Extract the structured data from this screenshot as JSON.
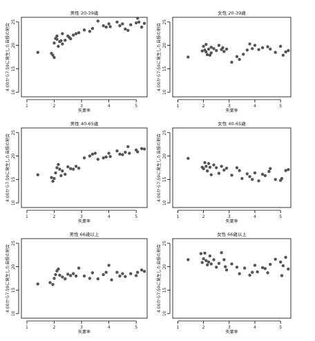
{
  "chart_data": [
    {
      "type": "scatter",
      "title": "男性 20-39歳",
      "xlabel": "失業率",
      "ylabel": "4:00から7:59に発生した自殺の割合",
      "xlim": [
        0.8,
        5.4
      ],
      "ylim": [
        9,
        26
      ],
      "xticks": [
        1,
        2,
        3,
        4,
        5
      ],
      "yticks": [
        10,
        15,
        20,
        25
      ],
      "grid": false,
      "points": [
        [
          1.4,
          18.5
        ],
        [
          1.9,
          18.3
        ],
        [
          1.95,
          17.9
        ],
        [
          2.0,
          17.4
        ],
        [
          2.0,
          20.5
        ],
        [
          2.05,
          21.5
        ],
        [
          2.1,
          21.3
        ],
        [
          2.1,
          22.0
        ],
        [
          2.15,
          19.8
        ],
        [
          2.2,
          20.8
        ],
        [
          2.25,
          21.0
        ],
        [
          2.3,
          20.3
        ],
        [
          2.3,
          22.5
        ],
        [
          2.4,
          21.1
        ],
        [
          2.5,
          22.0
        ],
        [
          2.55,
          21.7
        ],
        [
          2.6,
          21.4
        ],
        [
          2.7,
          22.2
        ],
        [
          2.8,
          22.5
        ],
        [
          2.9,
          22.7
        ],
        [
          3.1,
          23.3
        ],
        [
          3.3,
          23.0
        ],
        [
          3.4,
          23.6
        ],
        [
          3.6,
          25.2
        ],
        [
          3.8,
          24.2
        ],
        [
          3.9,
          23.9
        ],
        [
          4.0,
          24.6
        ],
        [
          4.05,
          24.0
        ],
        [
          4.3,
          25.0
        ],
        [
          4.4,
          24.2
        ],
        [
          4.5,
          24.6
        ],
        [
          4.6,
          23.5
        ],
        [
          4.7,
          23.2
        ],
        [
          4.8,
          24.4
        ],
        [
          5.0,
          24.8
        ],
        [
          5.05,
          25.8
        ],
        [
          5.1,
          25.0
        ],
        [
          5.2,
          23.9
        ],
        [
          5.3,
          24.7
        ]
      ]
    },
    {
      "type": "scatter",
      "title": "女性 20-39歳",
      "xlabel": "失業率",
      "ylabel": "4:00から7:59に発生した自殺の割合",
      "xlim": [
        0.8,
        5.4
      ],
      "ylim": [
        9,
        26
      ],
      "xticks": [
        1,
        2,
        3,
        4,
        5
      ],
      "yticks": [
        10,
        15,
        20,
        25
      ],
      "grid": false,
      "points": [
        [
          1.4,
          17.5
        ],
        [
          1.95,
          18.8
        ],
        [
          2.0,
          19.8
        ],
        [
          2.05,
          19.0
        ],
        [
          2.1,
          18.6
        ],
        [
          2.1,
          20.2
        ],
        [
          2.15,
          18.0
        ],
        [
          2.2,
          19.2
        ],
        [
          2.25,
          17.9
        ],
        [
          2.3,
          18.4
        ],
        [
          2.3,
          19.6
        ],
        [
          2.4,
          19.3
        ],
        [
          2.5,
          18.9
        ],
        [
          2.6,
          20.0
        ],
        [
          2.7,
          19.1
        ],
        [
          2.75,
          19.5
        ],
        [
          2.8,
          18.7
        ],
        [
          2.9,
          19.2
        ],
        [
          3.1,
          16.4
        ],
        [
          3.3,
          17.6
        ],
        [
          3.4,
          17.0
        ],
        [
          3.55,
          18.1
        ],
        [
          3.7,
          19.0
        ],
        [
          3.8,
          20.3
        ],
        [
          3.9,
          19.3
        ],
        [
          4.0,
          20.0
        ],
        [
          4.15,
          19.1
        ],
        [
          4.3,
          19.5
        ],
        [
          4.5,
          19.7
        ],
        [
          4.6,
          19.2
        ],
        [
          4.8,
          18.5
        ],
        [
          5.0,
          19.8
        ],
        [
          5.1,
          17.9
        ],
        [
          5.2,
          18.6
        ],
        [
          5.3,
          18.9
        ]
      ]
    },
    {
      "type": "scatter",
      "title": "男性 40-65歳",
      "xlabel": "失業率",
      "ylabel": "4:00から7:59に発生した自殺の割合",
      "xlim": [
        0.8,
        5.4
      ],
      "ylim": [
        9,
        26
      ],
      "xticks": [
        1,
        2,
        3,
        4,
        5
      ],
      "yticks": [
        10,
        15,
        20,
        25
      ],
      "grid": false,
      "points": [
        [
          1.4,
          16.0
        ],
        [
          1.9,
          15.4
        ],
        [
          1.95,
          14.6
        ],
        [
          2.0,
          15.2
        ],
        [
          2.05,
          16.4
        ],
        [
          2.1,
          17.5
        ],
        [
          2.15,
          18.2
        ],
        [
          2.2,
          17.2
        ],
        [
          2.25,
          15.8
        ],
        [
          2.3,
          16.8
        ],
        [
          2.4,
          16.1
        ],
        [
          2.5,
          17.7
        ],
        [
          2.6,
          17.3
        ],
        [
          2.7,
          17.2
        ],
        [
          2.8,
          17.8
        ],
        [
          2.9,
          17.4
        ],
        [
          3.1,
          19.6
        ],
        [
          3.3,
          20.0
        ],
        [
          3.4,
          20.4
        ],
        [
          3.5,
          20.6
        ],
        [
          3.6,
          19.3
        ],
        [
          3.8,
          19.6
        ],
        [
          3.9,
          19.8
        ],
        [
          4.0,
          20.6
        ],
        [
          4.05,
          19.9
        ],
        [
          4.3,
          21.1
        ],
        [
          4.4,
          20.4
        ],
        [
          4.5,
          20.3
        ],
        [
          4.6,
          20.8
        ],
        [
          4.7,
          22.0
        ],
        [
          4.75,
          20.6
        ],
        [
          5.0,
          21.3
        ],
        [
          5.05,
          20.9
        ],
        [
          5.2,
          21.6
        ],
        [
          5.3,
          21.5
        ]
      ]
    },
    {
      "type": "scatter",
      "title": "女性 40-65歳",
      "xlabel": "失業率",
      "ylabel": "4:00から7:59に発生した自殺の割合",
      "xlim": [
        0.8,
        5.4
      ],
      "ylim": [
        9,
        26
      ],
      "xticks": [
        1,
        2,
        3,
        4,
        5
      ],
      "yticks": [
        10,
        15,
        20,
        25
      ],
      "grid": false,
      "points": [
        [
          1.4,
          19.5
        ],
        [
          1.95,
          17.6
        ],
        [
          2.0,
          17.3
        ],
        [
          2.05,
          18.6
        ],
        [
          2.1,
          17.8
        ],
        [
          2.15,
          16.8
        ],
        [
          2.2,
          18.4
        ],
        [
          2.25,
          17.6
        ],
        [
          2.3,
          16.0
        ],
        [
          2.4,
          18.1
        ],
        [
          2.5,
          17.5
        ],
        [
          2.6,
          16.3
        ],
        [
          2.7,
          17.8
        ],
        [
          2.8,
          17.0
        ],
        [
          2.9,
          17.4
        ],
        [
          3.1,
          15.9
        ],
        [
          3.3,
          17.5
        ],
        [
          3.4,
          16.9
        ],
        [
          3.5,
          15.2
        ],
        [
          3.7,
          16.2
        ],
        [
          3.8,
          15.6
        ],
        [
          3.9,
          15.0
        ],
        [
          4.0,
          16.4
        ],
        [
          4.15,
          14.7
        ],
        [
          4.3,
          16.1
        ],
        [
          4.4,
          15.8
        ],
        [
          4.55,
          16.7
        ],
        [
          4.6,
          17.3
        ],
        [
          4.8,
          15.0
        ],
        [
          5.0,
          14.8
        ],
        [
          5.05,
          15.2
        ],
        [
          5.2,
          16.9
        ],
        [
          5.3,
          17.1
        ]
      ]
    },
    {
      "type": "scatter",
      "title": "男性 66歳以上",
      "xlabel": "失業率",
      "ylabel": "4:00から7:59に発生した自殺の割合",
      "xlim": [
        0.8,
        5.4
      ],
      "ylim": [
        9,
        26
      ],
      "xticks": [
        1,
        2,
        3,
        4,
        5
      ],
      "yticks": [
        10,
        15,
        20,
        25
      ],
      "grid": false,
      "points": [
        [
          1.4,
          16.3
        ],
        [
          1.85,
          16.6
        ],
        [
          1.95,
          16.2
        ],
        [
          2.0,
          17.5
        ],
        [
          2.05,
          18.3
        ],
        [
          2.1,
          19.1
        ],
        [
          2.15,
          19.5
        ],
        [
          2.2,
          18.2
        ],
        [
          2.3,
          17.8
        ],
        [
          2.4,
          17.4
        ],
        [
          2.5,
          18.4
        ],
        [
          2.6,
          18.1
        ],
        [
          2.7,
          18.5
        ],
        [
          2.8,
          18.0
        ],
        [
          2.9,
          19.7
        ],
        [
          3.1,
          18.0
        ],
        [
          3.3,
          17.5
        ],
        [
          3.4,
          18.7
        ],
        [
          3.6,
          17.4
        ],
        [
          3.8,
          18.3
        ],
        [
          3.9,
          18.8
        ],
        [
          4.0,
          20.3
        ],
        [
          4.1,
          17.2
        ],
        [
          4.3,
          18.8
        ],
        [
          4.4,
          18.0
        ],
        [
          4.5,
          18.5
        ],
        [
          4.6,
          17.9
        ],
        [
          4.8,
          18.5
        ],
        [
          5.0,
          18.1
        ],
        [
          5.05,
          18.8
        ],
        [
          5.2,
          19.3
        ],
        [
          5.3,
          19.0
        ]
      ]
    },
    {
      "type": "scatter",
      "title": "女性 66歳以上",
      "xlabel": "失業率",
      "ylabel": "4:00から7:59に発生した自殺の割合",
      "xlim": [
        0.8,
        5.4
      ],
      "ylim": [
        9,
        26
      ],
      "xticks": [
        1,
        2,
        3,
        4,
        5
      ],
      "yticks": [
        10,
        15,
        20,
        25
      ],
      "grid": false,
      "points": [
        [
          1.4,
          21.5
        ],
        [
          1.9,
          22.8
        ],
        [
          1.95,
          20.9
        ],
        [
          2.0,
          21.7
        ],
        [
          2.05,
          22.9
        ],
        [
          2.1,
          21.3
        ],
        [
          2.15,
          20.4
        ],
        [
          2.2,
          21.0
        ],
        [
          2.25,
          22.3
        ],
        [
          2.3,
          20.6
        ],
        [
          2.4,
          21.5
        ],
        [
          2.5,
          19.9
        ],
        [
          2.6,
          20.7
        ],
        [
          2.7,
          23.0
        ],
        [
          2.8,
          21.5
        ],
        [
          2.85,
          20.0
        ],
        [
          2.9,
          19.3
        ],
        [
          3.1,
          20.6
        ],
        [
          3.3,
          19.9
        ],
        [
          3.4,
          18.5
        ],
        [
          3.6,
          19.7
        ],
        [
          3.8,
          18.2
        ],
        [
          3.9,
          18.8
        ],
        [
          4.0,
          20.3
        ],
        [
          4.1,
          18.9
        ],
        [
          4.3,
          19.8
        ],
        [
          4.4,
          19.6
        ],
        [
          4.5,
          18.7
        ],
        [
          4.6,
          20.5
        ],
        [
          4.8,
          21.6
        ],
        [
          5.0,
          21.0
        ],
        [
          5.05,
          18.1
        ],
        [
          5.1,
          20.2
        ],
        [
          5.2,
          22.0
        ],
        [
          5.3,
          19.5
        ]
      ]
    }
  ]
}
